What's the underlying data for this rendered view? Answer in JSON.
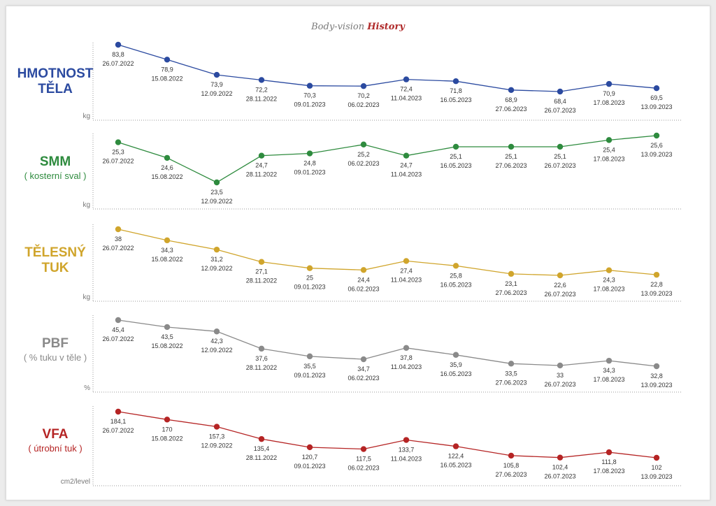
{
  "header": {
    "title_prefix": "Body-vision",
    "title_accent": "History"
  },
  "colors": {
    "weight": "#2b4aa0",
    "smm": "#2e8b3e",
    "fat": "#d0a52c",
    "pbf": "#8a8a8a",
    "vfa": "#b52424"
  },
  "chart_data": [
    {
      "type": "line",
      "label_lines": [
        "HMOTNOST",
        "TĚLA"
      ],
      "unit": "kg",
      "dates": [
        "26.07.2022",
        "15.08.2022",
        "12.09.2022",
        "28.11.2022",
        "09.01.2023",
        "06.02.2023",
        "11.04.2023",
        "16.05.2023",
        "27.06.2023",
        "26.07.2023",
        "17.08.2023",
        "13.09.2023"
      ],
      "values": [
        83.8,
        78.9,
        73.9,
        72.2,
        70.3,
        70.2,
        72.4,
        71.8,
        68.9,
        68.4,
        70.9,
        69.5
      ],
      "value_labels": [
        "83,8",
        "78,9",
        "73,9",
        "72,2",
        "70,3",
        "70,2",
        "72,4",
        "71,8",
        "68,9",
        "68,4",
        "70,9",
        "69,5"
      ]
    },
    {
      "type": "line",
      "label_lines": [
        "SMM"
      ],
      "sublabel": "( kosterní sval )",
      "unit": "kg",
      "dates": [
        "26.07.2022",
        "15.08.2022",
        "12.09.2022",
        "28.11.2022",
        "09.01.2023",
        "06.02.2023",
        "11.04.2023",
        "16.05.2023",
        "27.06.2023",
        "26.07.2023",
        "17.08.2023",
        "13.09.2023"
      ],
      "values": [
        25.3,
        24.6,
        23.5,
        24.7,
        24.8,
        25.2,
        24.7,
        25.1,
        25.1,
        25.1,
        25.4,
        25.6
      ],
      "value_labels": [
        "25,3",
        "24,6",
        "23,5",
        "24,7",
        "24,8",
        "25,2",
        "24,7",
        "25,1",
        "25,1",
        "25,1",
        "25,4",
        "25,6"
      ]
    },
    {
      "type": "line",
      "label_lines": [
        "TĚLESNÝ",
        "TUK"
      ],
      "unit": "kg",
      "dates": [
        "26.07.2022",
        "15.08.2022",
        "12.09.2022",
        "28.11.2022",
        "09.01.2023",
        "06.02.2023",
        "11.04.2023",
        "16.05.2023",
        "27.06.2023",
        "26.07.2023",
        "17.08.2023",
        "13.09.2023"
      ],
      "values": [
        38,
        34.3,
        31.2,
        27.1,
        25,
        24.4,
        27.4,
        25.8,
        23.1,
        22.6,
        24.3,
        22.8
      ],
      "value_labels": [
        "38",
        "34,3",
        "31,2",
        "27,1",
        "25",
        "24,4",
        "27,4",
        "25,8",
        "23,1",
        "22,6",
        "24,3",
        "22,8"
      ]
    },
    {
      "type": "line",
      "label_lines": [
        "PBF"
      ],
      "sublabel": "( % tuku v těle )",
      "unit": "%",
      "dates": [
        "26.07.2022",
        "15.08.2022",
        "12.09.2022",
        "28.11.2022",
        "09.01.2023",
        "06.02.2023",
        "11.04.2023",
        "16.05.2023",
        "27.06.2023",
        "26.07.2023",
        "17.08.2023",
        "13.09.2023"
      ],
      "values": [
        45.4,
        43.5,
        42.3,
        37.6,
        35.5,
        34.7,
        37.8,
        35.9,
        33.5,
        33,
        34.3,
        32.8
      ],
      "value_labels": [
        "45,4",
        "43,5",
        "42,3",
        "37,6",
        "35,5",
        "34,7",
        "37,8",
        "35,9",
        "33,5",
        "33",
        "34,3",
        "32,8"
      ]
    },
    {
      "type": "line",
      "label_lines": [
        "VFA"
      ],
      "sublabel": "( útrobní tuk )",
      "unit": "cm2/level",
      "dates": [
        "26.07.2022",
        "15.08.2022",
        "12.09.2022",
        "28.11.2022",
        "09.01.2023",
        "06.02.2023",
        "11.04.2023",
        "16.05.2023",
        "27.06.2023",
        "26.07.2023",
        "17.08.2023",
        "13.09.2023"
      ],
      "values": [
        184.1,
        170,
        157.3,
        135.4,
        120.7,
        117.5,
        133.7,
        122.4,
        105.8,
        102.4,
        111.8,
        102
      ],
      "value_labels": [
        "184,1",
        "170",
        "157,3",
        "135,4",
        "120,7",
        "117,5",
        "133,7",
        "122,4",
        "105,8",
        "102,4",
        "111,8",
        "102"
      ]
    }
  ]
}
